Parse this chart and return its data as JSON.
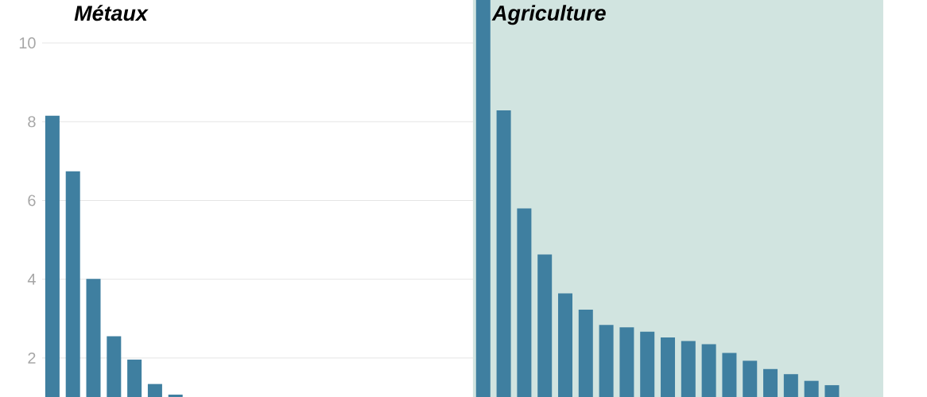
{
  "chart_data": {
    "type": "bar",
    "categories": [
      null,
      null,
      null,
      null,
      null,
      null,
      null,
      null,
      null,
      null,
      null,
      null,
      null,
      null,
      null,
      null,
      null,
      null,
      null,
      null,
      null,
      null,
      null,
      null,
      null,
      null,
      null,
      null,
      null,
      null,
      null,
      null,
      null,
      null,
      null,
      null,
      null,
      null,
      null,
      null,
      null
    ],
    "values": [
      8.15,
      6.74,
      4.01,
      2.55,
      1.96,
      1.34,
      1.07,
      null,
      null,
      null,
      null,
      null,
      null,
      null,
      null,
      null,
      null,
      null,
      null,
      null,
      null,
      11.09,
      8.29,
      5.8,
      4.63,
      3.64,
      3.23,
      2.84,
      2.78,
      2.67,
      2.52,
      2.43,
      2.35,
      2.13,
      1.93,
      1.72,
      1.59,
      1.42,
      1.31,
      null,
      null
    ],
    "color": "#3f7fa0",
    "ylim": [
      1.01,
      11.09
    ],
    "yticks": [
      2,
      4,
      6,
      8,
      10
    ],
    "grid": "y",
    "annotations": [
      "Métaux",
      "Agriculture"
    ]
  }
}
